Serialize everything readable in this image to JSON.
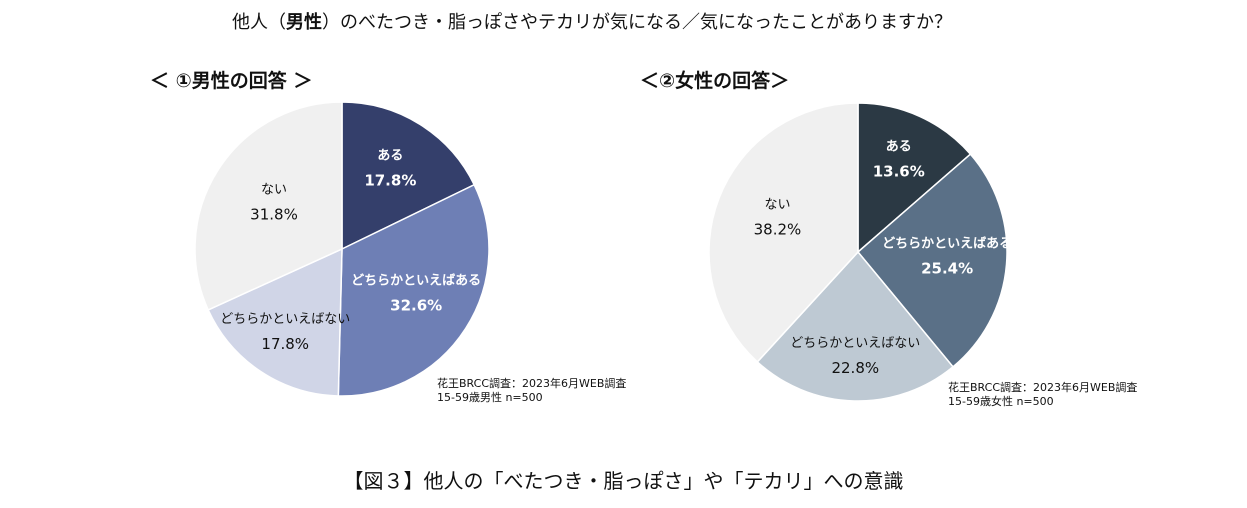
{
  "title": {
    "prefix": "他人（",
    "bold": "男性",
    "suffix": "）のべたつき・脂っぽさやテカリが気になる／気になったことがありますか？"
  },
  "caption": "【図３】他人の「べたつき・脂っぽさ」や「テカリ」への意識",
  "chart_data": [
    {
      "type": "pie",
      "title": "＜ ①男性の回答 ＞",
      "note": [
        "花王BRCC調査：2023年6月WEB調査",
        "15-59歳男性  n=500"
      ],
      "slices": [
        {
          "label": "ある",
          "value": 17.8,
          "display": "17.8%",
          "color": "#343f6b",
          "text_color": "#ffffff",
          "bold": true
        },
        {
          "label": "どちらかといえばある",
          "value": 32.6,
          "display": "32.6%",
          "color": "#6e7fb5",
          "text_color": "#ffffff",
          "bold": true
        },
        {
          "label": "どちらかといえばない",
          "value": 17.8,
          "display": "17.8%",
          "color": "#d0d5e7",
          "text_color": "#111111",
          "bold": false
        },
        {
          "label": "ない",
          "value": 31.8,
          "display": "31.8%",
          "color": "#f0f0f0",
          "text_color": "#111111",
          "bold": false
        }
      ]
    },
    {
      "type": "pie",
      "title": "＜②女性の回答＞",
      "note": [
        "花王BRCC調査：2023年6月WEB調査",
        "15-59歳女性  n=500"
      ],
      "slices": [
        {
          "label": "ある",
          "value": 13.6,
          "display": "13.6%",
          "color": "#2b3944",
          "text_color": "#ffffff",
          "bold": true
        },
        {
          "label": "どちらかといえばある",
          "value": 25.4,
          "display": "25.4%",
          "color": "#5a7087",
          "text_color": "#ffffff",
          "bold": true
        },
        {
          "label": "どちらかといえばない",
          "value": 22.8,
          "display": "22.8%",
          "color": "#bec9d3",
          "text_color": "#111111",
          "bold": false
        },
        {
          "label": "ない",
          "value": 38.2,
          "display": "38.2%",
          "color": "#f0f0f0",
          "text_color": "#111111",
          "bold": false
        }
      ]
    }
  ]
}
